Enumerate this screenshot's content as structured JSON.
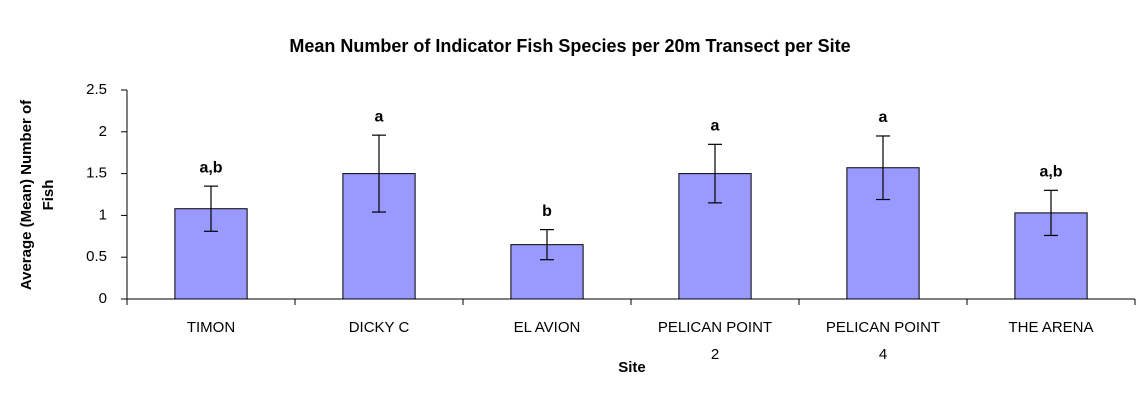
{
  "chart_data": {
    "type": "bar",
    "title": "Mean Number of Indicator Fish Species per 20m Transect per Site",
    "x_label": "Site",
    "y_label": "Average (Mean) Number of Fish",
    "categories": [
      "TIMON",
      "DICKY C",
      "EL AVION",
      "PELICAN POINT 2",
      "PELICAN POINT 4",
      "THE ARENA"
    ],
    "values": [
      1.08,
      1.5,
      0.65,
      1.5,
      1.57,
      1.03
    ],
    "errors": [
      0.27,
      0.46,
      0.18,
      0.35,
      0.38,
      0.27
    ],
    "annotations": [
      "a,b",
      "a",
      "b",
      "a",
      "a",
      "a,b"
    ],
    "color": "#9999ff",
    "ylim": [
      0,
      2.5
    ],
    "yticks": [
      0,
      0.5,
      1,
      1.5,
      2,
      2.5
    ],
    "grid": false
  }
}
